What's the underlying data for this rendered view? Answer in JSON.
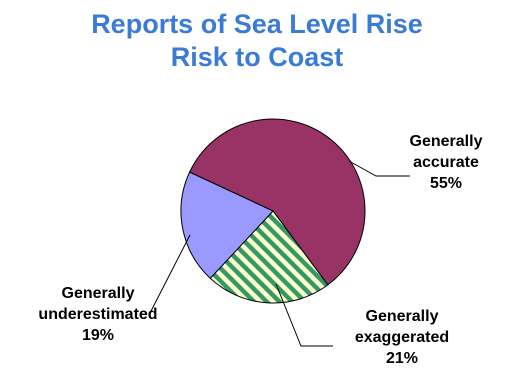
{
  "chart_data": {
    "type": "pie",
    "title_lines": [
      "Reports of Sea Level Rise",
      "Risk to Coast"
    ],
    "legend": "none",
    "slices": [
      {
        "name_lines": [
          "Generally",
          "accurate"
        ],
        "value": 55,
        "value_label": "55%",
        "color": "#993366",
        "pattern": "solid"
      },
      {
        "name_lines": [
          "Generally",
          "exaggerated"
        ],
        "value": 21,
        "value_label": "21%",
        "color": "#FFFFCC",
        "stripe_color": "#339966",
        "pattern": "diagonal-stripes"
      },
      {
        "name_lines": [
          "Generally",
          "underestimated"
        ],
        "value": 19,
        "value_label": "19%",
        "color": "#9999FF",
        "pattern": "solid"
      }
    ]
  }
}
